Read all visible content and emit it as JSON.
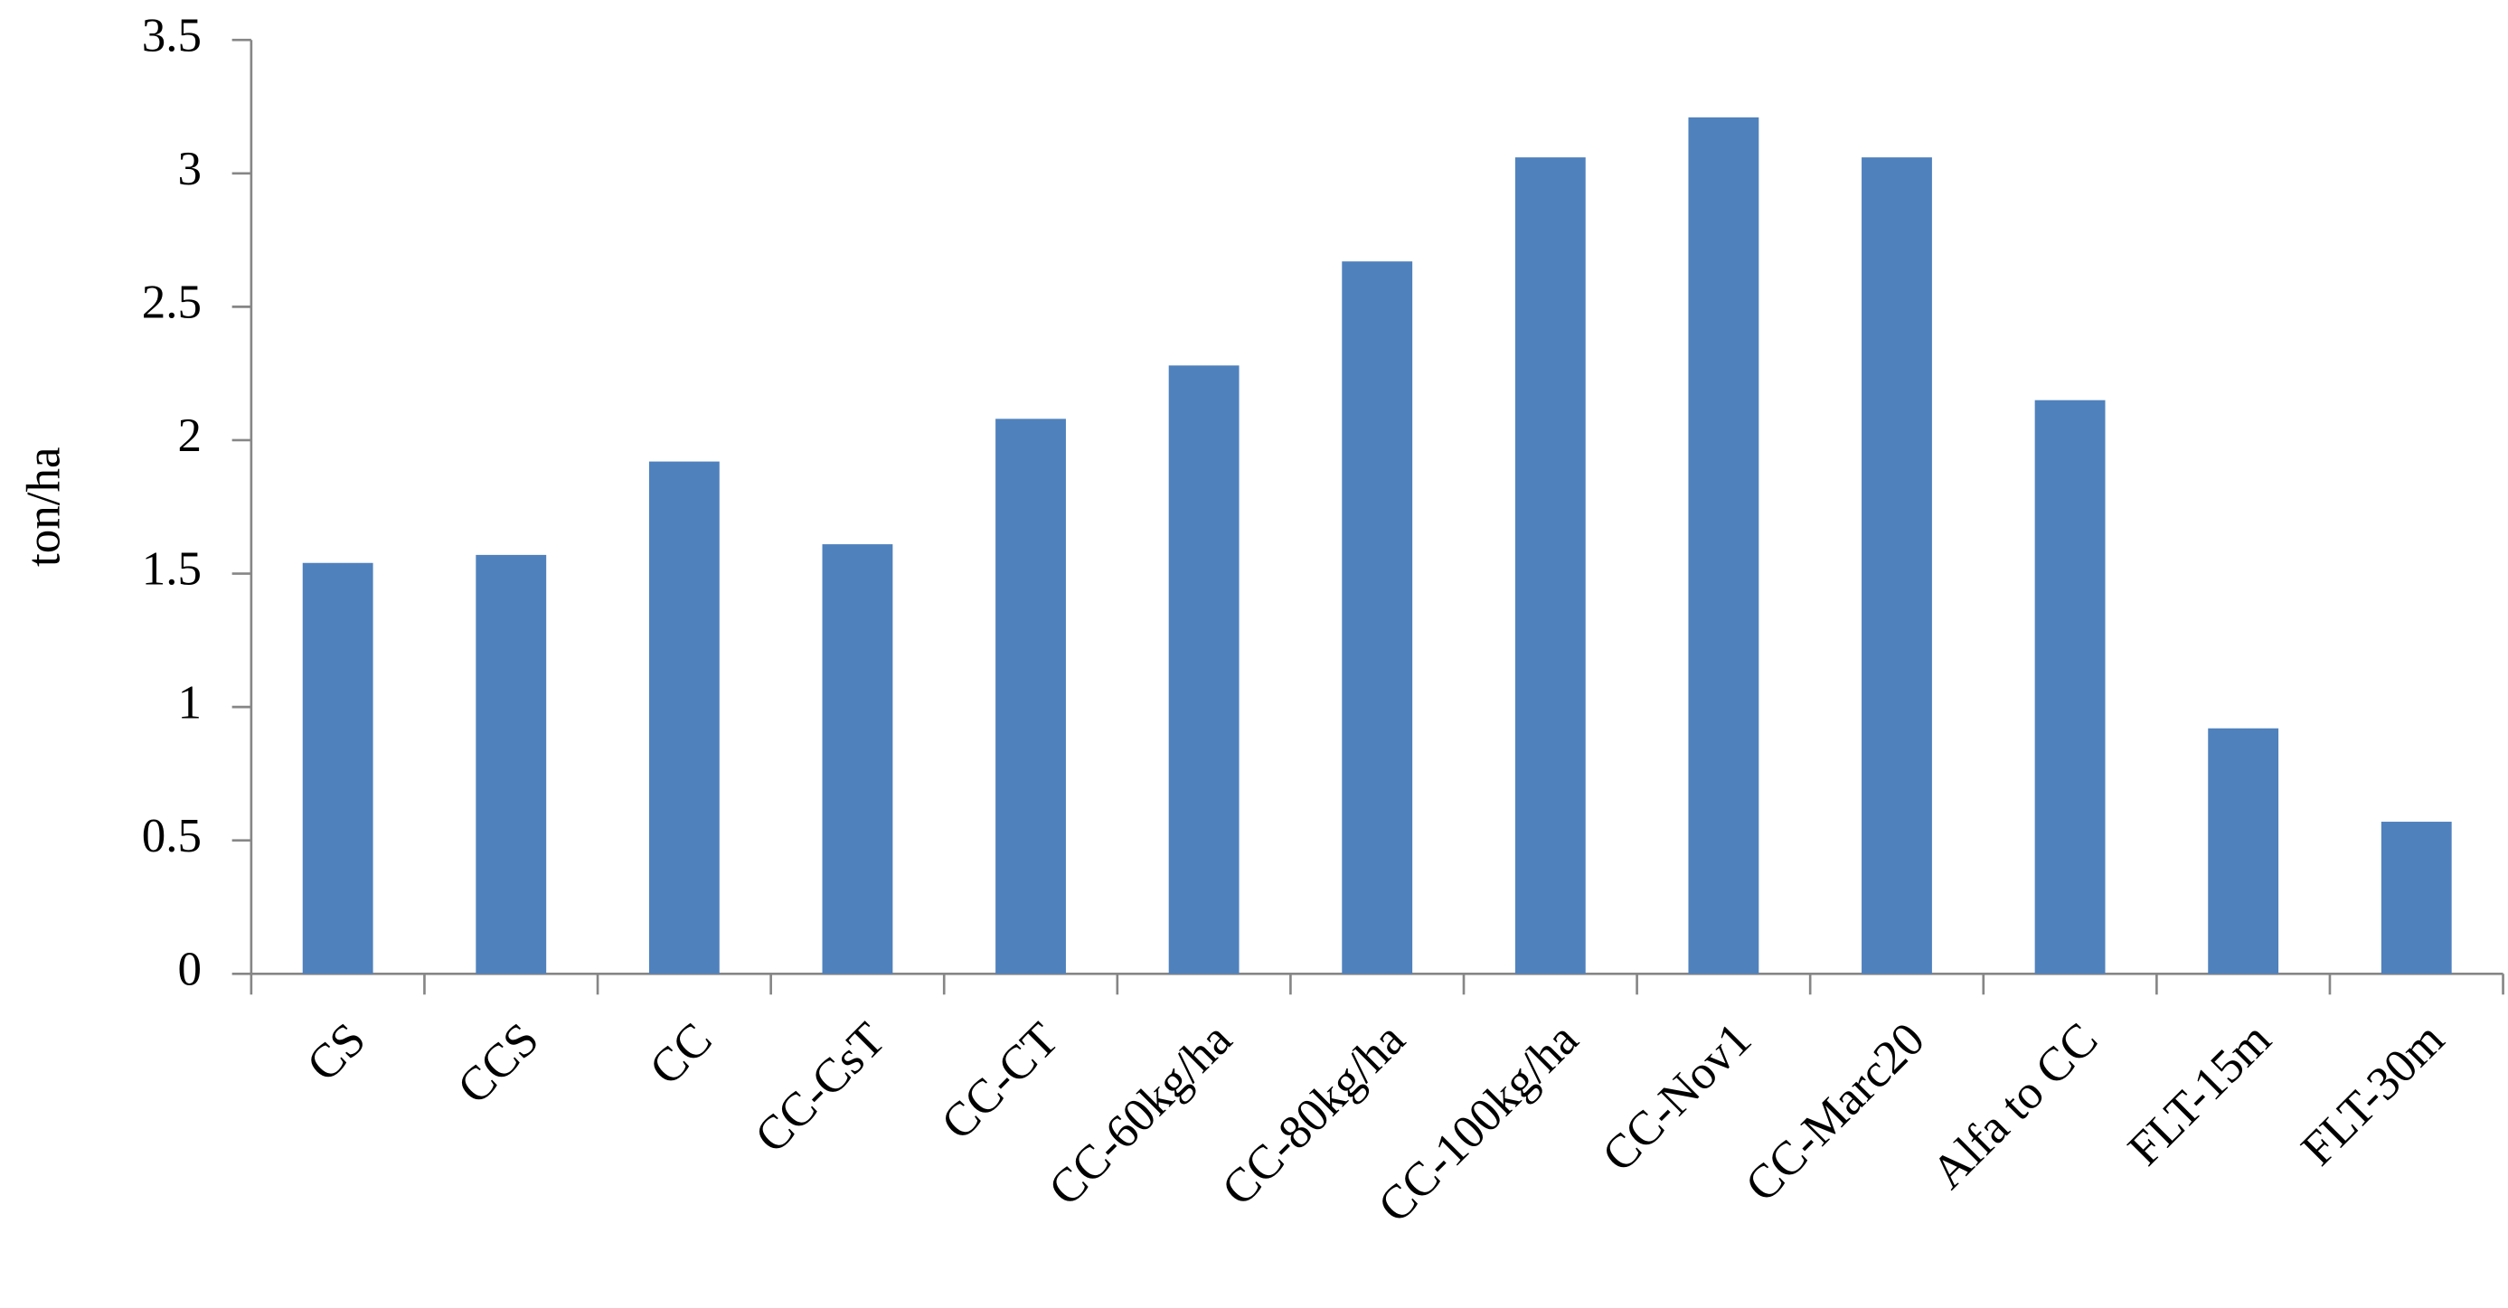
{
  "chart_data": {
    "type": "bar",
    "y_label": "ton/ha",
    "categories": [
      "CS",
      "CCS",
      "CC",
      "CC-CsT",
      "CC-CT",
      "CC-60kg/ha",
      "CC-80kg/ha",
      "CC-100kg/ha",
      "CC-Nov1",
      "CC-Marc20",
      "Alfa to CC",
      "FLT-15m",
      "FLT-30m"
    ],
    "values": [
      1.54,
      1.57,
      1.92,
      1.61,
      2.08,
      2.28,
      2.67,
      3.06,
      3.21,
      3.06,
      2.15,
      0.92,
      0.57
    ],
    "color": "#4f81bd",
    "ylim": [
      0,
      3.5
    ],
    "yticks": [
      0,
      0.5,
      1,
      1.5,
      2,
      2.5,
      3,
      3.5
    ],
    "grid": false
  }
}
